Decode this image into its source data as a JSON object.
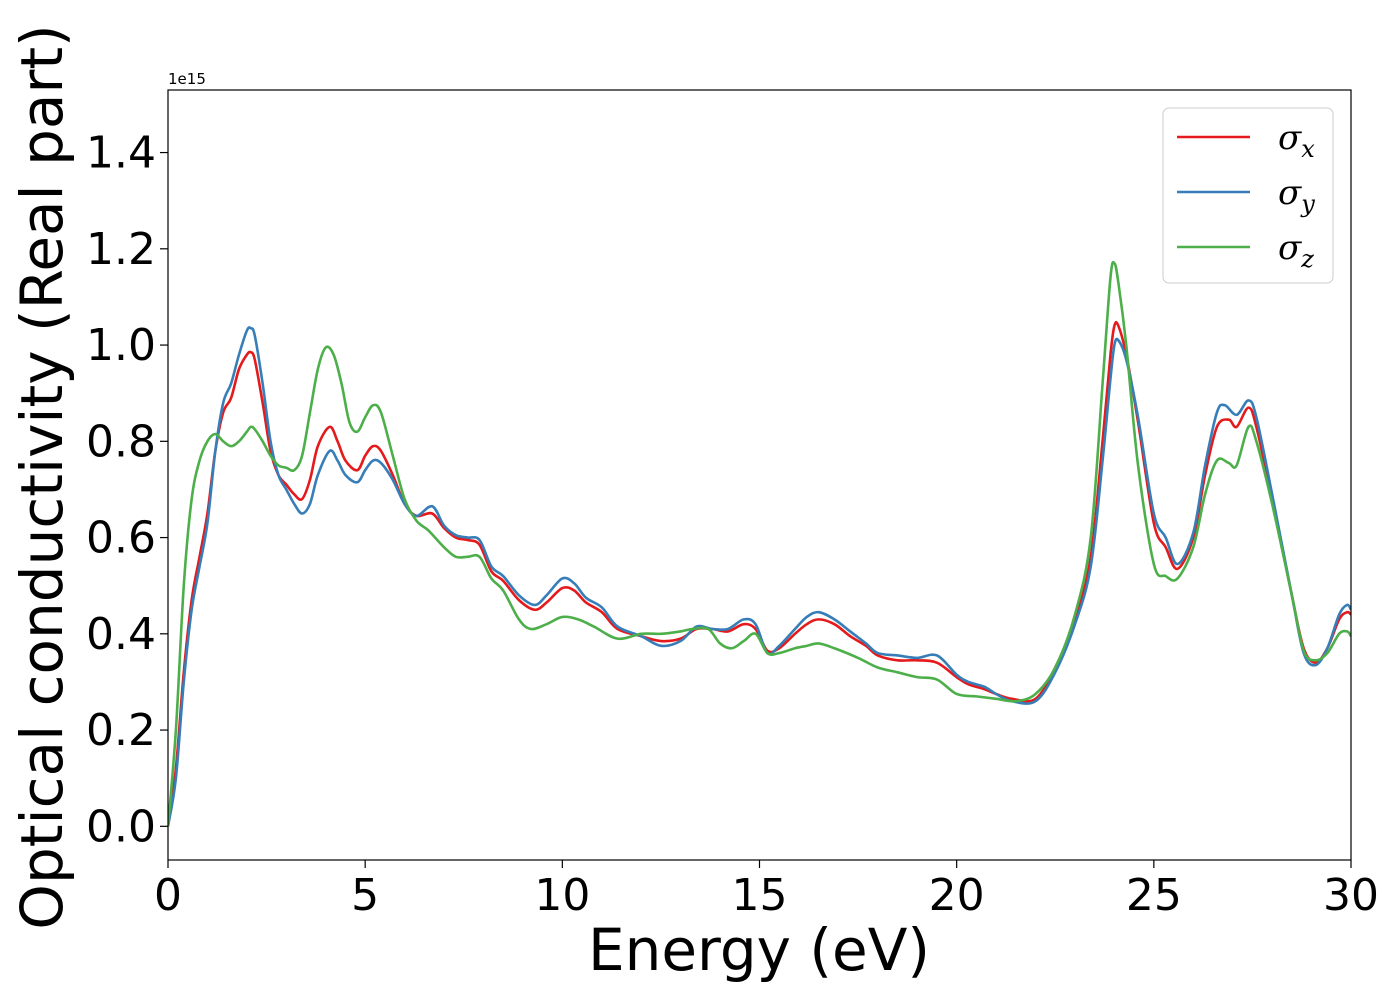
{
  "chart_data": {
    "type": "line",
    "xlabel": "Energy (eV)",
    "ylabel": "Optical conductivity (Real part)",
    "y_offset_label": "1e15",
    "xlim": [
      0,
      30
    ],
    "ylim": [
      -0.07,
      1.53
    ],
    "x_ticks": [
      0,
      5,
      10,
      15,
      20,
      25,
      30
    ],
    "x_tick_labels": [
      "0",
      "5",
      "10",
      "15",
      "20",
      "25",
      "30"
    ],
    "y_ticks": [
      0.0,
      0.2,
      0.4,
      0.6,
      0.8,
      1.0,
      1.2,
      1.4
    ],
    "y_tick_labels": [
      "0.0",
      "0.2",
      "0.4",
      "0.6",
      "0.8",
      "1.0",
      "1.2",
      "1.4"
    ],
    "grid": false,
    "legend_position": "top-right",
    "series": [
      {
        "name": "σx",
        "symbol": "σ",
        "subscript": "x",
        "color": "#e41a1c",
        "points": [
          [
            0,
            0
          ],
          [
            0.2,
            0.12
          ],
          [
            0.4,
            0.32
          ],
          [
            0.6,
            0.47
          ],
          [
            0.8,
            0.56
          ],
          [
            1.0,
            0.65
          ],
          [
            1.2,
            0.78
          ],
          [
            1.4,
            0.86
          ],
          [
            1.6,
            0.89
          ],
          [
            1.8,
            0.95
          ],
          [
            2.0,
            0.98
          ],
          [
            2.1,
            0.985
          ],
          [
            2.2,
            0.97
          ],
          [
            2.4,
            0.88
          ],
          [
            2.6,
            0.78
          ],
          [
            2.8,
            0.73
          ],
          [
            3.0,
            0.71
          ],
          [
            3.2,
            0.69
          ],
          [
            3.4,
            0.68
          ],
          [
            3.6,
            0.72
          ],
          [
            3.8,
            0.79
          ],
          [
            4.1,
            0.83
          ],
          [
            4.3,
            0.8
          ],
          [
            4.5,
            0.76
          ],
          [
            4.8,
            0.74
          ],
          [
            5.0,
            0.77
          ],
          [
            5.2,
            0.79
          ],
          [
            5.4,
            0.78
          ],
          [
            5.7,
            0.73
          ],
          [
            6.0,
            0.67
          ],
          [
            6.3,
            0.645
          ],
          [
            6.7,
            0.65
          ],
          [
            7.0,
            0.62
          ],
          [
            7.3,
            0.6
          ],
          [
            7.6,
            0.595
          ],
          [
            7.9,
            0.585
          ],
          [
            8.2,
            0.53
          ],
          [
            8.5,
            0.51
          ],
          [
            8.9,
            0.47
          ],
          [
            9.3,
            0.45
          ],
          [
            9.6,
            0.465
          ],
          [
            10.0,
            0.495
          ],
          [
            10.3,
            0.49
          ],
          [
            10.6,
            0.465
          ],
          [
            11.0,
            0.445
          ],
          [
            11.4,
            0.41
          ],
          [
            12.0,
            0.395
          ],
          [
            12.5,
            0.385
          ],
          [
            13.0,
            0.39
          ],
          [
            13.4,
            0.41
          ],
          [
            13.8,
            0.41
          ],
          [
            14.2,
            0.405
          ],
          [
            14.6,
            0.42
          ],
          [
            14.9,
            0.41
          ],
          [
            15.2,
            0.365
          ],
          [
            15.5,
            0.37
          ],
          [
            15.9,
            0.4
          ],
          [
            16.2,
            0.42
          ],
          [
            16.5,
            0.43
          ],
          [
            16.9,
            0.42
          ],
          [
            17.3,
            0.395
          ],
          [
            17.7,
            0.375
          ],
          [
            18.0,
            0.355
          ],
          [
            18.5,
            0.345
          ],
          [
            19.0,
            0.345
          ],
          [
            19.5,
            0.34
          ],
          [
            20.0,
            0.31
          ],
          [
            20.3,
            0.295
          ],
          [
            20.7,
            0.285
          ],
          [
            21.0,
            0.275
          ],
          [
            21.4,
            0.265
          ],
          [
            22.0,
            0.265
          ],
          [
            22.5,
            0.33
          ],
          [
            23.0,
            0.43
          ],
          [
            23.4,
            0.56
          ],
          [
            23.7,
            0.8
          ],
          [
            23.9,
            0.98
          ],
          [
            24.0,
            1.04
          ],
          [
            24.1,
            1.04
          ],
          [
            24.3,
            0.98
          ],
          [
            24.6,
            0.84
          ],
          [
            25.0,
            0.63
          ],
          [
            25.3,
            0.58
          ],
          [
            25.6,
            0.535
          ],
          [
            26.0,
            0.6
          ],
          [
            26.3,
            0.73
          ],
          [
            26.6,
            0.83
          ],
          [
            26.9,
            0.845
          ],
          [
            27.1,
            0.83
          ],
          [
            27.4,
            0.87
          ],
          [
            27.6,
            0.83
          ],
          [
            28.0,
            0.68
          ],
          [
            28.5,
            0.48
          ],
          [
            28.8,
            0.37
          ],
          [
            29.1,
            0.34
          ],
          [
            29.4,
            0.37
          ],
          [
            29.7,
            0.43
          ],
          [
            29.9,
            0.445
          ],
          [
            30.0,
            0.44
          ]
        ]
      },
      {
        "name": "σy",
        "symbol": "σ",
        "subscript": "y",
        "color": "#377eb8",
        "points": [
          [
            0,
            0
          ],
          [
            0.2,
            0.1
          ],
          [
            0.4,
            0.3
          ],
          [
            0.6,
            0.45
          ],
          [
            0.8,
            0.54
          ],
          [
            1.0,
            0.63
          ],
          [
            1.2,
            0.78
          ],
          [
            1.4,
            0.88
          ],
          [
            1.6,
            0.92
          ],
          [
            1.8,
            0.98
          ],
          [
            2.0,
            1.03
          ],
          [
            2.1,
            1.035
          ],
          [
            2.2,
            1.02
          ],
          [
            2.4,
            0.92
          ],
          [
            2.6,
            0.8
          ],
          [
            2.8,
            0.73
          ],
          [
            3.0,
            0.7
          ],
          [
            3.2,
            0.67
          ],
          [
            3.4,
            0.65
          ],
          [
            3.6,
            0.67
          ],
          [
            3.8,
            0.73
          ],
          [
            4.1,
            0.78
          ],
          [
            4.3,
            0.76
          ],
          [
            4.5,
            0.73
          ],
          [
            4.8,
            0.715
          ],
          [
            5.0,
            0.74
          ],
          [
            5.2,
            0.76
          ],
          [
            5.4,
            0.755
          ],
          [
            5.7,
            0.72
          ],
          [
            6.0,
            0.67
          ],
          [
            6.3,
            0.645
          ],
          [
            6.7,
            0.665
          ],
          [
            7.0,
            0.625
          ],
          [
            7.3,
            0.605
          ],
          [
            7.6,
            0.6
          ],
          [
            7.9,
            0.595
          ],
          [
            8.2,
            0.54
          ],
          [
            8.5,
            0.52
          ],
          [
            8.9,
            0.48
          ],
          [
            9.3,
            0.46
          ],
          [
            9.6,
            0.48
          ],
          [
            10.0,
            0.515
          ],
          [
            10.3,
            0.505
          ],
          [
            10.6,
            0.475
          ],
          [
            11.0,
            0.455
          ],
          [
            11.4,
            0.415
          ],
          [
            12.0,
            0.395
          ],
          [
            12.5,
            0.375
          ],
          [
            13.0,
            0.385
          ],
          [
            13.4,
            0.415
          ],
          [
            13.8,
            0.41
          ],
          [
            14.2,
            0.41
          ],
          [
            14.6,
            0.43
          ],
          [
            14.9,
            0.42
          ],
          [
            15.2,
            0.36
          ],
          [
            15.5,
            0.375
          ],
          [
            15.9,
            0.41
          ],
          [
            16.2,
            0.435
          ],
          [
            16.5,
            0.445
          ],
          [
            16.9,
            0.43
          ],
          [
            17.3,
            0.405
          ],
          [
            17.7,
            0.38
          ],
          [
            18.0,
            0.36
          ],
          [
            18.5,
            0.355
          ],
          [
            19.0,
            0.35
          ],
          [
            19.5,
            0.355
          ],
          [
            20.0,
            0.315
          ],
          [
            20.3,
            0.3
          ],
          [
            20.7,
            0.29
          ],
          [
            21.0,
            0.275
          ],
          [
            21.4,
            0.26
          ],
          [
            22.0,
            0.26
          ],
          [
            22.5,
            0.32
          ],
          [
            23.0,
            0.42
          ],
          [
            23.4,
            0.54
          ],
          [
            23.7,
            0.76
          ],
          [
            23.9,
            0.93
          ],
          [
            24.0,
            1.0
          ],
          [
            24.1,
            1.01
          ],
          [
            24.3,
            0.97
          ],
          [
            24.6,
            0.85
          ],
          [
            25.0,
            0.65
          ],
          [
            25.3,
            0.6
          ],
          [
            25.6,
            0.545
          ],
          [
            26.0,
            0.61
          ],
          [
            26.3,
            0.75
          ],
          [
            26.6,
            0.86
          ],
          [
            26.8,
            0.875
          ],
          [
            27.1,
            0.855
          ],
          [
            27.4,
            0.885
          ],
          [
            27.6,
            0.85
          ],
          [
            28.0,
            0.69
          ],
          [
            28.5,
            0.48
          ],
          [
            28.8,
            0.36
          ],
          [
            29.1,
            0.335
          ],
          [
            29.4,
            0.37
          ],
          [
            29.7,
            0.44
          ],
          [
            29.9,
            0.46
          ],
          [
            30.0,
            0.45
          ]
        ]
      },
      {
        "name": "σz",
        "symbol": "σ",
        "subscript": "z",
        "color": "#4daf4a",
        "points": [
          [
            0,
            0
          ],
          [
            0.2,
            0.2
          ],
          [
            0.4,
            0.5
          ],
          [
            0.6,
            0.68
          ],
          [
            0.8,
            0.76
          ],
          [
            1.0,
            0.8
          ],
          [
            1.2,
            0.815
          ],
          [
            1.4,
            0.8
          ],
          [
            1.6,
            0.79
          ],
          [
            1.8,
            0.8
          ],
          [
            2.0,
            0.82
          ],
          [
            2.1,
            0.83
          ],
          [
            2.2,
            0.825
          ],
          [
            2.4,
            0.8
          ],
          [
            2.6,
            0.77
          ],
          [
            2.8,
            0.75
          ],
          [
            3.0,
            0.745
          ],
          [
            3.2,
            0.74
          ],
          [
            3.4,
            0.77
          ],
          [
            3.6,
            0.86
          ],
          [
            3.8,
            0.95
          ],
          [
            4.0,
            0.995
          ],
          [
            4.2,
            0.98
          ],
          [
            4.4,
            0.92
          ],
          [
            4.6,
            0.84
          ],
          [
            4.8,
            0.82
          ],
          [
            5.0,
            0.85
          ],
          [
            5.2,
            0.875
          ],
          [
            5.4,
            0.86
          ],
          [
            5.7,
            0.77
          ],
          [
            6.0,
            0.68
          ],
          [
            6.3,
            0.635
          ],
          [
            6.6,
            0.615
          ],
          [
            7.0,
            0.58
          ],
          [
            7.3,
            0.56
          ],
          [
            7.6,
            0.56
          ],
          [
            7.9,
            0.56
          ],
          [
            8.2,
            0.515
          ],
          [
            8.5,
            0.49
          ],
          [
            8.9,
            0.43
          ],
          [
            9.2,
            0.41
          ],
          [
            9.6,
            0.42
          ],
          [
            10.0,
            0.435
          ],
          [
            10.4,
            0.43
          ],
          [
            10.8,
            0.415
          ],
          [
            11.4,
            0.39
          ],
          [
            12.0,
            0.4
          ],
          [
            12.5,
            0.4
          ],
          [
            13.0,
            0.405
          ],
          [
            13.3,
            0.41
          ],
          [
            13.7,
            0.41
          ],
          [
            14.0,
            0.38
          ],
          [
            14.3,
            0.37
          ],
          [
            14.6,
            0.385
          ],
          [
            14.9,
            0.4
          ],
          [
            15.2,
            0.36
          ],
          [
            15.5,
            0.36
          ],
          [
            15.9,
            0.37
          ],
          [
            16.2,
            0.375
          ],
          [
            16.5,
            0.38
          ],
          [
            16.9,
            0.37
          ],
          [
            17.5,
            0.35
          ],
          [
            18.0,
            0.33
          ],
          [
            18.5,
            0.32
          ],
          [
            19.0,
            0.31
          ],
          [
            19.5,
            0.305
          ],
          [
            20.0,
            0.275
          ],
          [
            20.5,
            0.27
          ],
          [
            21.0,
            0.265
          ],
          [
            21.5,
            0.26
          ],
          [
            22.0,
            0.275
          ],
          [
            22.5,
            0.33
          ],
          [
            23.0,
            0.44
          ],
          [
            23.4,
            0.6
          ],
          [
            23.7,
            0.92
          ],
          [
            23.9,
            1.14
          ],
          [
            24.0,
            1.17
          ],
          [
            24.1,
            1.13
          ],
          [
            24.3,
            1.0
          ],
          [
            24.6,
            0.75
          ],
          [
            25.0,
            0.545
          ],
          [
            25.3,
            0.52
          ],
          [
            25.6,
            0.515
          ],
          [
            26.0,
            0.58
          ],
          [
            26.3,
            0.69
          ],
          [
            26.6,
            0.76
          ],
          [
            26.9,
            0.755
          ],
          [
            27.1,
            0.75
          ],
          [
            27.4,
            0.83
          ],
          [
            27.6,
            0.8
          ],
          [
            28.0,
            0.67
          ],
          [
            28.5,
            0.48
          ],
          [
            28.8,
            0.365
          ],
          [
            29.1,
            0.345
          ],
          [
            29.4,
            0.36
          ],
          [
            29.7,
            0.4
          ],
          [
            29.9,
            0.405
          ],
          [
            30.0,
            0.395
          ]
        ]
      }
    ]
  }
}
